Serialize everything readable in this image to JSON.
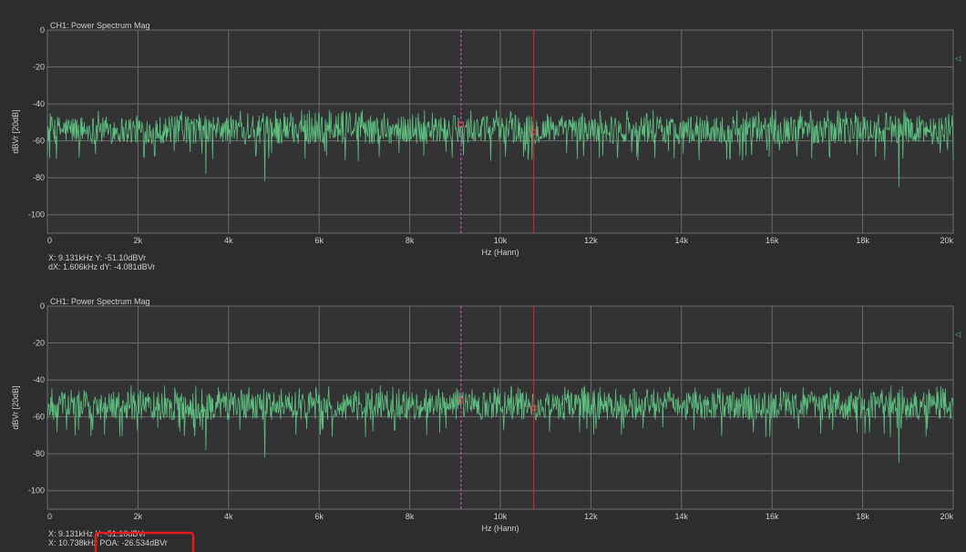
{
  "colors": {
    "background": "#2d2d30",
    "plot_background": "#333336",
    "grid": "#6c6c6c",
    "text": "#cfcfcf",
    "trace": "#5cbf7f",
    "cursor_primary": "#c844c8",
    "cursor_secondary": "#c42a2a",
    "highlight_box": "#e31b1b"
  },
  "panels": [
    {
      "title": "CH1: Power Spectrum Mag",
      "readouts": [
        "X: 9.131kHz Y: -51.10dBVr",
        "dX: 1.606kHz dY: -4.081dBVr"
      ],
      "marker": "◁"
    },
    {
      "title": "CH1: Power Spectrum Mag",
      "readouts": [
        "X: 9.131kHz Y: -51.10dBVr",
        "X: 10.738kHz POA: -26.534dBVr"
      ],
      "marker": "◁"
    }
  ],
  "chart_data": [
    {
      "type": "line",
      "title": "CH1: Power Spectrum Mag",
      "xlabel": "Hz (Hann)",
      "ylabel": "dBVr [20dB]",
      "xlim": [
        0,
        20000
      ],
      "ylim": [
        -110,
        0
      ],
      "x_ticks": [
        "0",
        "2k",
        "4k",
        "6k",
        "8k",
        "10k",
        "12k",
        "14k",
        "16k",
        "18k",
        "20k"
      ],
      "y_ticks": [
        "0",
        "-20",
        "-40",
        "-60",
        "-80",
        "-100"
      ],
      "grid": true,
      "series": [
        {
          "color": "#5cbf7f",
          "noise_floor": {
            "mean": -54,
            "upper": -43,
            "lower": -65,
            "deep_dips": [
              -82,
              -78,
              -85
            ]
          },
          "x": [
            0,
            1000,
            2000,
            3000,
            4000,
            4800,
            6000,
            7000,
            8000,
            9131,
            10738,
            12000,
            14000,
            16000,
            17000,
            18000,
            18800,
            20000
          ],
          "y": [
            -54,
            -53,
            -55,
            -54,
            -55,
            -82,
            -54,
            -55,
            -54,
            -51.1,
            -55.2,
            -54,
            -55,
            -54,
            -55,
            -54,
            -85,
            -55
          ]
        }
      ],
      "cursors": [
        {
          "x": 9131,
          "y": -51.1,
          "color": "#c844c8",
          "style": "dashed"
        },
        {
          "x": 10738,
          "y": -55.18,
          "color": "#c42a2a",
          "style": "solid"
        }
      ]
    },
    {
      "type": "line",
      "title": "CH1: Power Spectrum Mag",
      "xlabel": "Hz (Hann)",
      "ylabel": "dBVr [20dB]",
      "xlim": [
        0,
        20000
      ],
      "ylim": [
        -110,
        0
      ],
      "x_ticks": [
        "0",
        "2k",
        "4k",
        "6k",
        "8k",
        "10k",
        "12k",
        "14k",
        "16k",
        "18k",
        "20k"
      ],
      "y_ticks": [
        "0",
        "-20",
        "-40",
        "-60",
        "-80",
        "-100"
      ],
      "grid": true,
      "series": [
        {
          "color": "#5cbf7f",
          "noise_floor": {
            "mean": -54,
            "upper": -43,
            "lower": -65,
            "deep_dips": [
              -82,
              -78,
              -85
            ]
          },
          "x": [
            0,
            1000,
            2000,
            3000,
            4000,
            4800,
            6000,
            7000,
            8000,
            9131,
            10738,
            12000,
            14000,
            16000,
            17000,
            18000,
            18800,
            20000
          ],
          "y": [
            -54,
            -53,
            -55,
            -54,
            -55,
            -82,
            -54,
            -55,
            -54,
            -51.1,
            -55.2,
            -54,
            -55,
            -54,
            -55,
            -54,
            -85,
            -55
          ]
        }
      ],
      "cursors": [
        {
          "x": 9131,
          "y": -51.1,
          "color": "#c844c8",
          "style": "dashed"
        },
        {
          "x": 10738,
          "y": -55.18,
          "color": "#c42a2a",
          "style": "solid"
        }
      ]
    }
  ]
}
